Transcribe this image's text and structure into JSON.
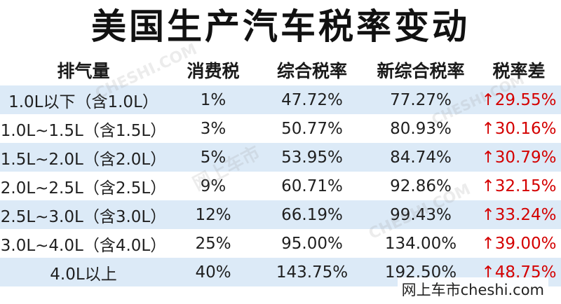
{
  "title": "美国生产汽车税率变动",
  "headers": [
    "排气量",
    "消费税",
    "综合税率",
    "新综合税率",
    "税率差"
  ],
  "rows": [
    {
      "displacement": "1.0L以下（含1.0L）",
      "consumption_tax": "1%",
      "combined_rate": "47.72%",
      "new_combined_rate": "77.27%",
      "diff": "29.55%"
    },
    {
      "displacement": "1.0L~1.5L（含1.5L）",
      "consumption_tax": "3%",
      "combined_rate": "50.77%",
      "new_combined_rate": "80.93%",
      "diff": "30.16%"
    },
    {
      "displacement": "1.5L~2.0L（含2.0L）",
      "consumption_tax": "5%",
      "combined_rate": "53.95%",
      "new_combined_rate": "84.74%",
      "diff": "30.79%"
    },
    {
      "displacement": "2.0L~2.5L（含2.5L）",
      "consumption_tax": "9%",
      "combined_rate": "60.71%",
      "new_combined_rate": "92.86%",
      "diff": "32.15%"
    },
    {
      "displacement": "2.5L~3.0L（含3.0L）",
      "consumption_tax": "12%",
      "combined_rate": "66.19%",
      "new_combined_rate": "99.43%",
      "diff": "33.24%"
    },
    {
      "displacement": "3.0L~4.0L（含4.0L）",
      "consumption_tax": "25%",
      "combined_rate": "95.00%",
      "new_combined_rate": "134.00%",
      "diff": "39.00%"
    },
    {
      "displacement": "4.0L以上",
      "consumption_tax": "40%",
      "combined_rate": "143.75%",
      "new_combined_rate": "192.50%",
      "diff": "48.75%"
    }
  ],
  "increase_arrow": "↑",
  "watermark": {
    "latin": "CHESHI.COM",
    "cn": "网上车市"
  },
  "brand": "网上车市cheshi.com",
  "colors": {
    "stripe": "#dceaf7",
    "increase": "#d40000"
  }
}
